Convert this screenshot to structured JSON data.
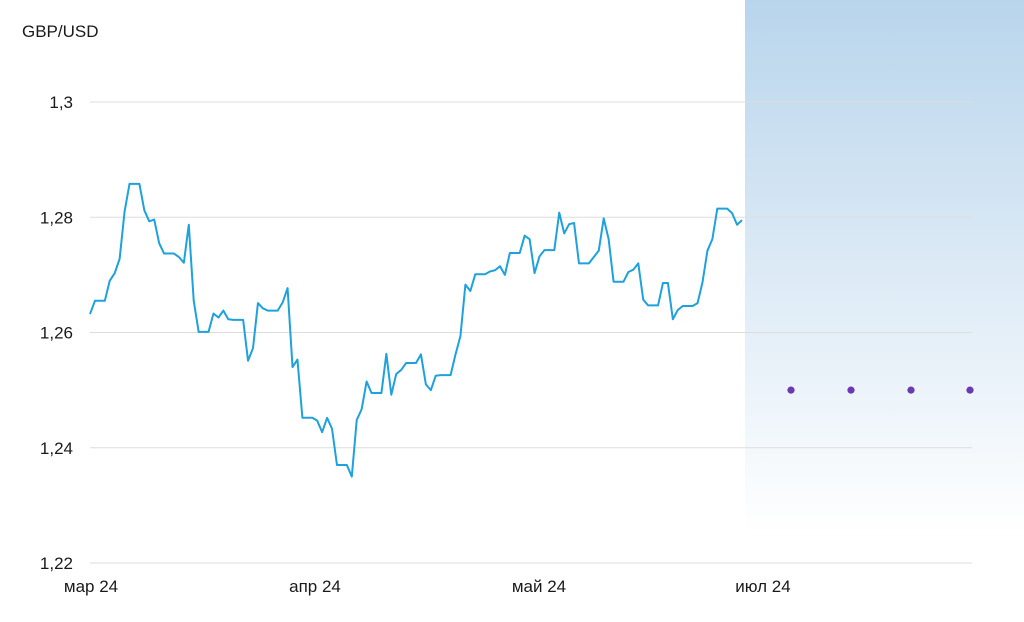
{
  "chart_data": {
    "type": "line",
    "ylabel": "GBP/USD",
    "ylim": [
      1.22,
      1.3
    ],
    "y_ticks": [
      {
        "value": 1.3,
        "label": "1,3"
      },
      {
        "value": 1.28,
        "label": "1,28"
      },
      {
        "value": 1.26,
        "label": "1,26"
      },
      {
        "value": 1.24,
        "label": "1,24"
      },
      {
        "value": 1.22,
        "label": "1,22"
      }
    ],
    "x_ticks": [
      "мар 24",
      "апр 24",
      "май 24",
      "июл 24"
    ],
    "grid": true,
    "colors": {
      "line": "#1ea1dc",
      "forecast_dot": "#6a3ab2",
      "forecast_band_top": "#b9d5ec",
      "forecast_band_bottom": "#ffffff",
      "grid": "#dddddd"
    },
    "series": [
      {
        "values": [
          1.2632,
          1.2655,
          1.2655,
          1.2655,
          1.269,
          1.2703,
          1.2728,
          1.281,
          1.2858,
          1.2858,
          1.2858,
          1.2812,
          1.2793,
          1.2796,
          1.2755,
          1.2737,
          1.2737,
          1.2737,
          1.2731,
          1.2721,
          1.2787,
          1.2655,
          1.2601,
          1.2601,
          1.2601,
          1.2633,
          1.2626,
          1.2638,
          1.2623,
          1.2622,
          1.2622,
          1.2622,
          1.2551,
          1.2573,
          1.2651,
          1.2642,
          1.2638,
          1.2638,
          1.2638,
          1.2652,
          1.2677,
          1.254,
          1.2553,
          1.2452,
          1.2452,
          1.2452,
          1.2447,
          1.2427,
          1.2452,
          1.2433,
          1.237,
          1.237,
          1.237,
          1.235,
          1.2448,
          1.2467,
          1.2515,
          1.2495,
          1.2495,
          1.2495,
          1.2563,
          1.2492,
          1.2528,
          1.2535,
          1.2547,
          1.2547,
          1.2547,
          1.2562,
          1.251,
          1.25,
          1.2525,
          1.2526,
          1.2526,
          1.2526,
          1.2562,
          1.2594,
          1.2683,
          1.2672,
          1.2701,
          1.2701,
          1.2701,
          1.2706,
          1.2708,
          1.2715,
          1.27,
          1.2738,
          1.2738,
          1.2738,
          1.2768,
          1.2762,
          1.2703,
          1.2732,
          1.2743,
          1.2743,
          1.2743,
          1.2808,
          1.2772,
          1.2788,
          1.279,
          1.272,
          1.272,
          1.272,
          1.2731,
          1.2742,
          1.2798,
          1.2762,
          1.2688,
          1.2688,
          1.2688,
          1.2705,
          1.2709,
          1.272,
          1.2657,
          1.2647,
          1.2647,
          1.2647,
          1.2686,
          1.2686,
          1.2623,
          1.2639,
          1.2646,
          1.2646,
          1.2646,
          1.2651,
          1.2687,
          1.2742,
          1.2762,
          1.2815,
          1.2815,
          1.2815,
          1.2807,
          1.2787,
          1.2795
        ]
      }
    ],
    "forecast_points": [
      1.25,
      1.25,
      1.25,
      1.25
    ]
  }
}
